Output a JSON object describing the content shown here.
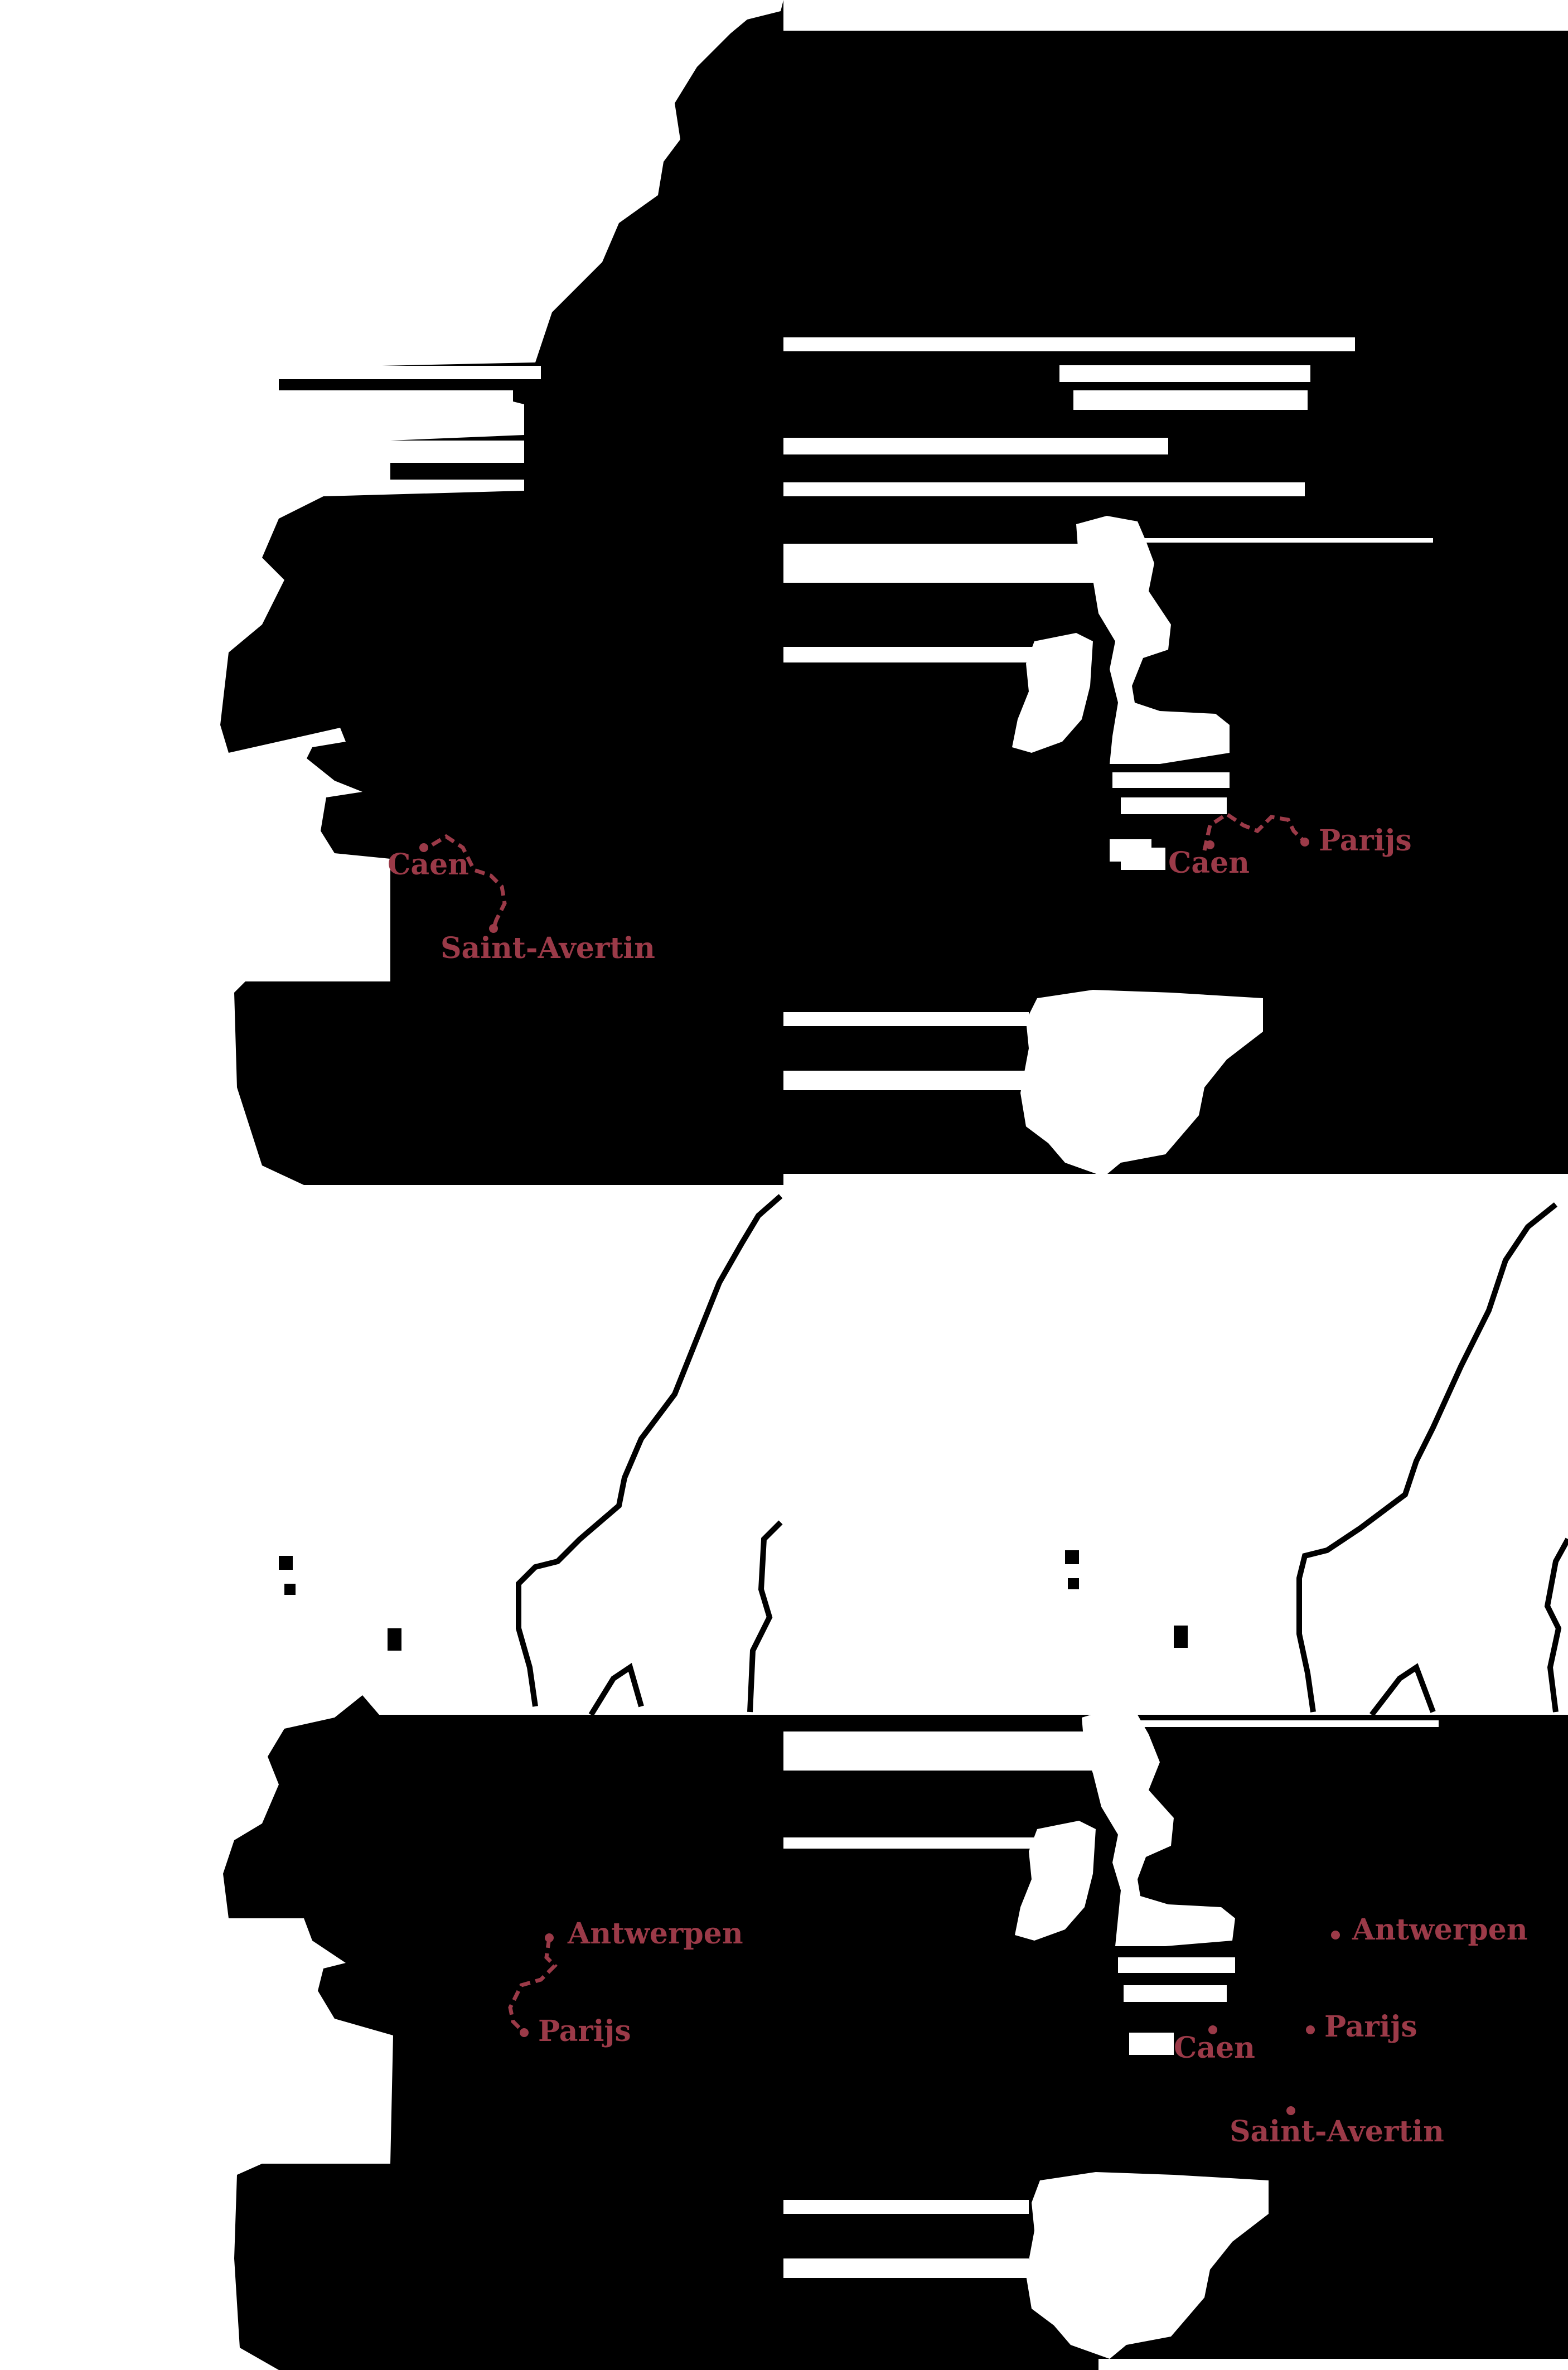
{
  "colors": {
    "land": "#000000",
    "background": "#ffffff",
    "route": "#9b3a48"
  },
  "panels": [
    {
      "id": "top-left",
      "labels": {
        "caen": "Caen",
        "saint_avertin": "Saint-Avertin"
      }
    },
    {
      "id": "top-right",
      "labels": {
        "caen": "Caen",
        "parijs": "Parijs"
      }
    },
    {
      "id": "bottom-left",
      "labels": {
        "antwerpen": "Antwerpen",
        "parijs": "Parijs"
      }
    },
    {
      "id": "bottom-right",
      "labels": {
        "antwerpen": "Antwerpen",
        "parijs": "Parijs",
        "caen": "Caen",
        "saint_avertin": "Saint-Avertin"
      }
    }
  ]
}
